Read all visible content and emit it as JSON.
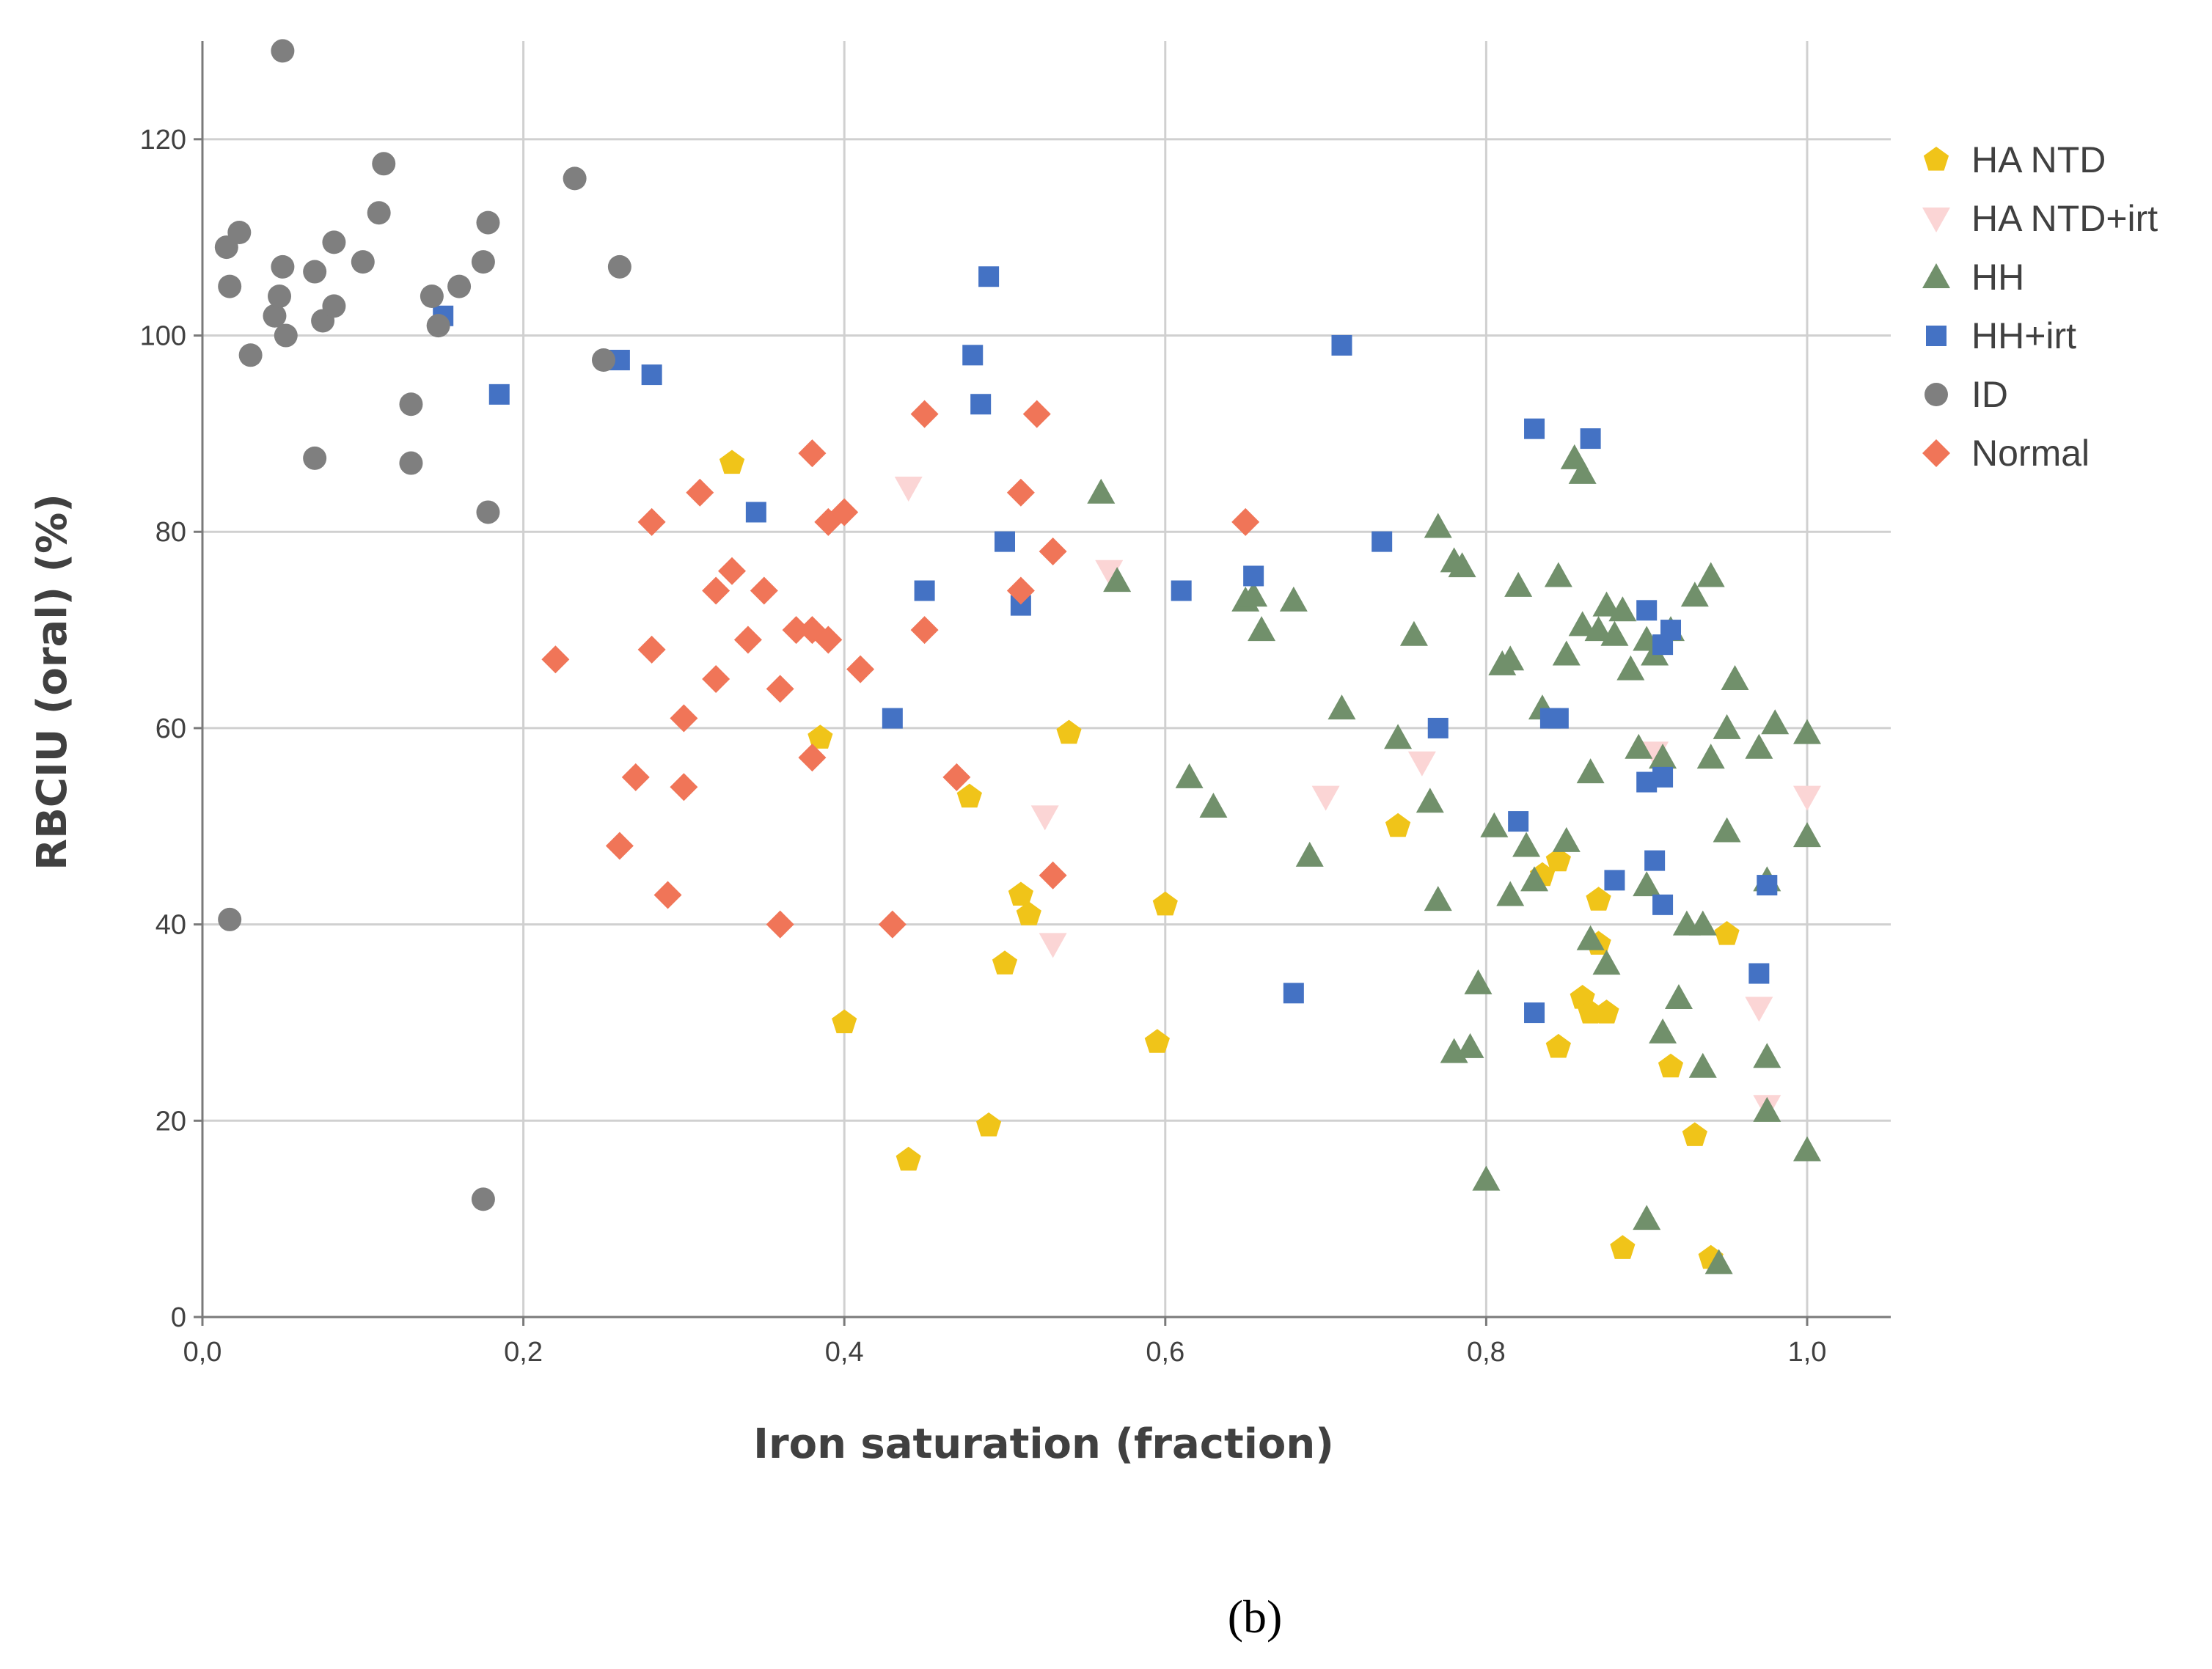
{
  "chart_data": {
    "type": "scatter",
    "title": "",
    "xlabel": "Iron saturation (fraction)",
    "ylabel": "RBCIU (oral) (%)",
    "xlim": [
      0,
      1.05
    ],
    "ylim": [
      0,
      130
    ],
    "x_ticks": [
      0,
      0.2,
      0.4,
      0.6,
      0.8,
      1.0
    ],
    "x_tick_labels": [
      "0,0",
      "0,2",
      "0,4",
      "0,6",
      "0,8",
      "1,0"
    ],
    "y_ticks": [
      0,
      20,
      40,
      60,
      80,
      100,
      120
    ],
    "y_tick_labels": [
      "0",
      "20",
      "40",
      "60",
      "80",
      "100",
      "120"
    ],
    "grid": true,
    "legend_position": "right",
    "caption": "(b)",
    "series": [
      {
        "name": "HA NTD",
        "marker": "pentagon",
        "color": "#F0C419",
        "points": [
          [
            0.33,
            87
          ],
          [
            0.385,
            59
          ],
          [
            0.4,
            30
          ],
          [
            0.44,
            16
          ],
          [
            0.478,
            53
          ],
          [
            0.49,
            19.5
          ],
          [
            0.5,
            36
          ],
          [
            0.51,
            43
          ],
          [
            0.515,
            41
          ],
          [
            0.54,
            59.5
          ],
          [
            0.595,
            28
          ],
          [
            0.6,
            42
          ],
          [
            0.745,
            50
          ],
          [
            0.835,
            45
          ],
          [
            0.845,
            46.5
          ],
          [
            0.845,
            27.5
          ],
          [
            0.86,
            32.5
          ],
          [
            0.865,
            31
          ],
          [
            0.87,
            42.5
          ],
          [
            0.87,
            38
          ],
          [
            0.875,
            31
          ],
          [
            0.885,
            7
          ],
          [
            0.915,
            25.5
          ],
          [
            0.93,
            18.5
          ],
          [
            0.94,
            6
          ],
          [
            0.95,
            39
          ]
        ]
      },
      {
        "name": "HA NTD+irt",
        "marker": "triangle-down",
        "color": "#FBD5D5",
        "points": [
          [
            0.44,
            84.5
          ],
          [
            0.525,
            51
          ],
          [
            0.53,
            38
          ],
          [
            0.565,
            76
          ],
          [
            0.7,
            53
          ],
          [
            0.76,
            56.5
          ],
          [
            0.905,
            57.5
          ],
          [
            0.97,
            31.5
          ],
          [
            0.975,
            21.5
          ],
          [
            1.0,
            53
          ]
        ]
      },
      {
        "name": "HH",
        "marker": "triangle-up",
        "color": "#71906B",
        "points": [
          [
            0.56,
            84
          ],
          [
            0.57,
            75
          ],
          [
            0.615,
            55
          ],
          [
            0.63,
            52
          ],
          [
            0.65,
            73
          ],
          [
            0.655,
            73.5
          ],
          [
            0.66,
            70
          ],
          [
            0.68,
            73
          ],
          [
            0.69,
            47
          ],
          [
            0.71,
            62
          ],
          [
            0.745,
            59
          ],
          [
            0.755,
            69.5
          ],
          [
            0.765,
            52.5
          ],
          [
            0.77,
            42.5
          ],
          [
            0.77,
            80.5
          ],
          [
            0.78,
            27
          ],
          [
            0.78,
            77
          ],
          [
            0.785,
            76.5
          ],
          [
            0.79,
            27.5
          ],
          [
            0.795,
            34
          ],
          [
            0.8,
            14
          ],
          [
            0.805,
            50
          ],
          [
            0.81,
            66.5
          ],
          [
            0.815,
            43
          ],
          [
            0.815,
            67
          ],
          [
            0.82,
            74.5
          ],
          [
            0.825,
            48
          ],
          [
            0.83,
            44.5
          ],
          [
            0.835,
            62
          ],
          [
            0.845,
            75.5
          ],
          [
            0.85,
            67.5
          ],
          [
            0.85,
            48.5
          ],
          [
            0.855,
            87.5
          ],
          [
            0.86,
            86
          ],
          [
            0.86,
            70.5
          ],
          [
            0.865,
            55.5
          ],
          [
            0.865,
            38.5
          ],
          [
            0.87,
            70
          ],
          [
            0.875,
            36
          ],
          [
            0.875,
            72.5
          ],
          [
            0.88,
            69.5
          ],
          [
            0.885,
            72
          ],
          [
            0.89,
            66
          ],
          [
            0.895,
            58
          ],
          [
            0.9,
            44
          ],
          [
            0.9,
            10
          ],
          [
            0.9,
            69
          ],
          [
            0.905,
            67.5
          ],
          [
            0.91,
            29
          ],
          [
            0.91,
            57
          ],
          [
            0.915,
            70
          ],
          [
            0.92,
            32.5
          ],
          [
            0.925,
            40
          ],
          [
            0.93,
            73.5
          ],
          [
            0.935,
            40
          ],
          [
            0.935,
            25.5
          ],
          [
            0.94,
            75.5
          ],
          [
            0.94,
            57
          ],
          [
            0.945,
            5.5
          ],
          [
            0.95,
            60
          ],
          [
            0.95,
            49.5
          ],
          [
            0.955,
            65
          ],
          [
            0.97,
            58
          ],
          [
            0.975,
            44.5
          ],
          [
            0.975,
            26.5
          ],
          [
            0.975,
            21
          ],
          [
            0.98,
            60.5
          ],
          [
            1.0,
            59.5
          ],
          [
            1.0,
            49
          ],
          [
            1.0,
            17
          ]
        ]
      },
      {
        "name": "HH+irt",
        "marker": "square",
        "color": "#4472C4",
        "points": [
          [
            0.15,
            102
          ],
          [
            0.185,
            94
          ],
          [
            0.26,
            97.5
          ],
          [
            0.28,
            96
          ],
          [
            0.345,
            82
          ],
          [
            0.43,
            61
          ],
          [
            0.45,
            74
          ],
          [
            0.48,
            98
          ],
          [
            0.485,
            93
          ],
          [
            0.49,
            106
          ],
          [
            0.5,
            79
          ],
          [
            0.51,
            72.5
          ],
          [
            0.61,
            74
          ],
          [
            0.655,
            75.5
          ],
          [
            0.68,
            33
          ],
          [
            0.71,
            99
          ],
          [
            0.735,
            79
          ],
          [
            0.77,
            60
          ],
          [
            0.82,
            50.5
          ],
          [
            0.83,
            31
          ],
          [
            0.83,
            90.5
          ],
          [
            0.84,
            61
          ],
          [
            0.845,
            61
          ],
          [
            0.865,
            89.5
          ],
          [
            0.88,
            44.5
          ],
          [
            0.9,
            72
          ],
          [
            0.9,
            54.5
          ],
          [
            0.905,
            46.5
          ],
          [
            0.91,
            42
          ],
          [
            0.91,
            55
          ],
          [
            0.91,
            68.5
          ],
          [
            0.915,
            70
          ],
          [
            0.97,
            35
          ],
          [
            0.975,
            44
          ]
        ]
      },
      {
        "name": "ID",
        "marker": "circle",
        "color": "#7F7F7F",
        "points": [
          [
            0.015,
            109
          ],
          [
            0.017,
            105
          ],
          [
            0.017,
            40.5
          ],
          [
            0.023,
            110.5
          ],
          [
            0.03,
            98
          ],
          [
            0.045,
            102
          ],
          [
            0.048,
            104
          ],
          [
            0.05,
            107
          ],
          [
            0.05,
            129
          ],
          [
            0.052,
            100
          ],
          [
            0.07,
            106.5
          ],
          [
            0.07,
            87.5
          ],
          [
            0.075,
            101.5
          ],
          [
            0.082,
            103
          ],
          [
            0.082,
            109.5
          ],
          [
            0.1,
            107.5
          ],
          [
            0.11,
            112.5
          ],
          [
            0.113,
            117.5
          ],
          [
            0.13,
            93
          ],
          [
            0.13,
            87
          ],
          [
            0.143,
            104
          ],
          [
            0.147,
            101
          ],
          [
            0.16,
            105
          ],
          [
            0.175,
            107.5
          ],
          [
            0.175,
            12
          ],
          [
            0.178,
            111.5
          ],
          [
            0.178,
            82
          ],
          [
            0.232,
            116
          ],
          [
            0.25,
            97.5
          ],
          [
            0.26,
            107
          ]
        ]
      },
      {
        "name": "Normal",
        "marker": "diamond",
        "color": "#F07558",
        "points": [
          [
            0.22,
            67
          ],
          [
            0.26,
            48
          ],
          [
            0.27,
            55
          ],
          [
            0.28,
            81
          ],
          [
            0.28,
            68
          ],
          [
            0.29,
            43
          ],
          [
            0.3,
            61
          ],
          [
            0.3,
            54
          ],
          [
            0.31,
            84
          ],
          [
            0.32,
            74
          ],
          [
            0.32,
            65
          ],
          [
            0.33,
            76
          ],
          [
            0.34,
            69
          ],
          [
            0.35,
            74
          ],
          [
            0.36,
            64
          ],
          [
            0.36,
            40
          ],
          [
            0.37,
            70
          ],
          [
            0.38,
            88
          ],
          [
            0.38,
            70
          ],
          [
            0.38,
            57
          ],
          [
            0.39,
            81
          ],
          [
            0.39,
            69
          ],
          [
            0.4,
            82
          ],
          [
            0.41,
            66
          ],
          [
            0.43,
            40
          ],
          [
            0.45,
            92
          ],
          [
            0.45,
            70
          ],
          [
            0.47,
            55
          ],
          [
            0.51,
            84
          ],
          [
            0.51,
            74
          ],
          [
            0.52,
            92
          ],
          [
            0.53,
            78
          ],
          [
            0.53,
            45
          ],
          [
            0.65,
            81
          ]
        ]
      }
    ]
  }
}
